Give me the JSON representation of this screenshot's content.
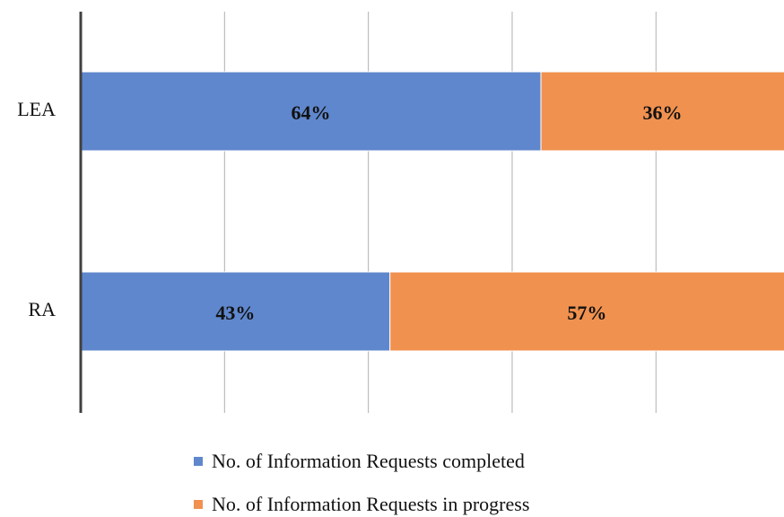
{
  "chart_data": {
    "type": "stacked_barh",
    "categories": [
      "LEA",
      "RA"
    ],
    "series": [
      {
        "name": "No. of Information Requests completed",
        "color": "#5f87cd",
        "values": [
          64,
          43
        ],
        "value_labels": [
          "64%",
          "43%"
        ]
      },
      {
        "name": "No. of Information Requests in progress",
        "color": "#f0914f",
        "values": [
          36,
          57
        ],
        "value_labels": [
          "36%",
          "57%"
        ]
      }
    ],
    "xlim": [
      0,
      100
    ],
    "xticks": [
      0,
      20,
      40,
      60,
      80
    ],
    "grid": true
  }
}
